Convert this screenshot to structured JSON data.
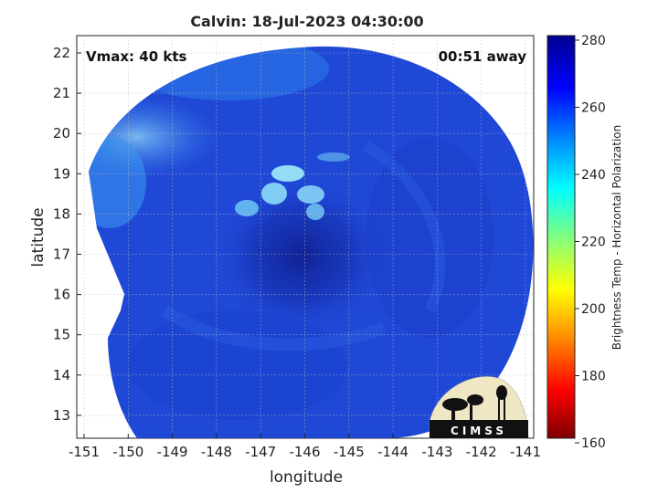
{
  "title": "Calvin: 18-Jul-2023 04:30:00",
  "annotations": {
    "vmax": "Vmax: 40 kts",
    "away": "00:51 away"
  },
  "axes": {
    "xlabel": "longitude",
    "ylabel": "latitude",
    "xticks": [
      "-151",
      "-150",
      "-149",
      "-148",
      "-147",
      "-146",
      "-145",
      "-144",
      "-143",
      "-142",
      "-141"
    ],
    "yticks": [
      "22",
      "21",
      "20",
      "19",
      "18",
      "17",
      "16",
      "15",
      "14",
      "13"
    ]
  },
  "colorbar": {
    "label": "Brightness Temp - Horizontal Polarization",
    "ticks": [
      "280",
      "260",
      "240",
      "220",
      "200",
      "180",
      "160"
    ],
    "colors": [
      "#7f0000",
      "#ff0000",
      "#ff8c00",
      "#ffff00",
      "#80ff80",
      "#00ffff",
      "#0080ff",
      "#0000ff",
      "#00008f"
    ]
  },
  "logo": {
    "text": "CIMSS"
  },
  "colors": {
    "field_base": "#1f48d6",
    "field_core": "#12239a",
    "field_bright": "#7fd9f5"
  }
}
